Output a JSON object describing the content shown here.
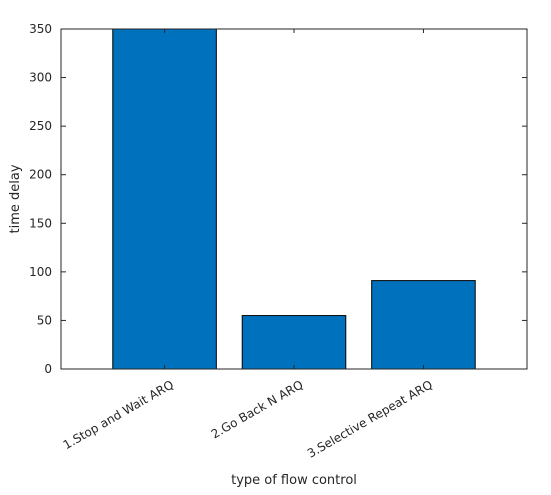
{
  "chart_data": {
    "type": "bar",
    "title": "",
    "xlabel": "type of flow control",
    "ylabel": "time delay",
    "categories": [
      "1.Stop and Wait ARQ",
      "2.Go Back N ARQ",
      "3.Selective Repeat ARQ"
    ],
    "values": [
      350,
      55,
      91
    ],
    "ylim": [
      0,
      350
    ],
    "yticks": [
      0,
      50,
      100,
      150,
      200,
      250,
      300,
      350
    ],
    "grid": false,
    "legend": "none",
    "bar_color": "#0072BD",
    "bar_edge_color": "#000000"
  }
}
